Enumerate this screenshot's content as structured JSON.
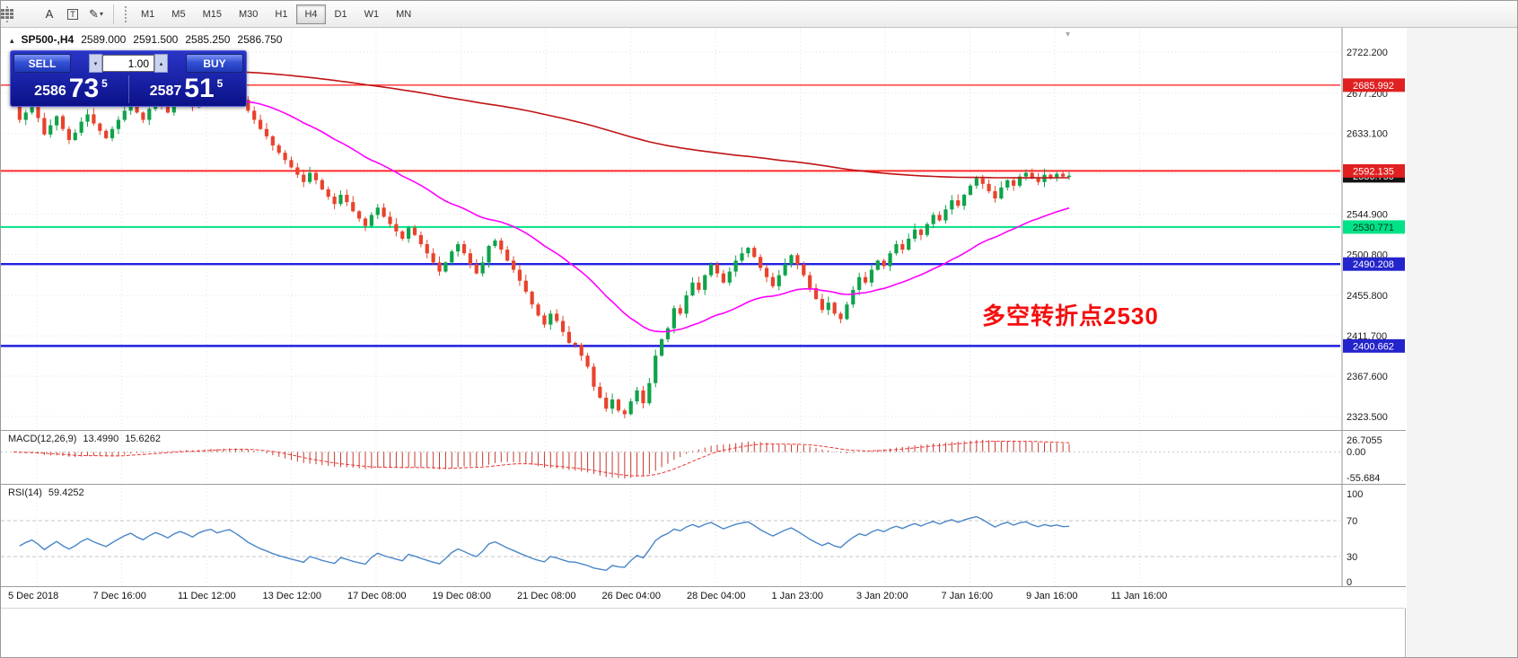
{
  "toolbar": {
    "tools": [
      {
        "name": "grid-icon",
        "glyph": ""
      },
      {
        "name": "text-tool-icon",
        "glyph": "A"
      },
      {
        "name": "label-tool-icon",
        "glyph": "T"
      },
      {
        "name": "draw-tool-icon",
        "glyph": "✎"
      }
    ],
    "draw_caret": "▾",
    "timeframes": [
      "M1",
      "M5",
      "M15",
      "M30",
      "H1",
      "H4",
      "D1",
      "W1",
      "MN"
    ],
    "active_timeframe": "H4"
  },
  "chart_header": {
    "expand_glyph": "▴",
    "symbol": "SP500-,H4",
    "open": "2589.000",
    "high": "2591.500",
    "low": "2585.250",
    "close": "2586.750"
  },
  "scroll_marker_glyph": "▾",
  "trade_panel": {
    "sell_label": "SELL",
    "buy_label": "BUY",
    "volume": "1.00",
    "volume_down_glyph": "▾",
    "volume_up_glyph": "▴",
    "sell_price_base": "2586",
    "sell_price_big": "73",
    "sell_price_sup": "5",
    "buy_price_base": "2587",
    "buy_price_big": "51",
    "buy_price_sup": "5"
  },
  "annotation": {
    "text": "多空转折点2530",
    "color": "#f50d0d"
  },
  "macd_panel": {
    "title": "MACD(12,26,9)",
    "value_main": "13.4990",
    "value_signal": "15.6262"
  },
  "rsi_panel": {
    "title": "RSI(14)",
    "value": "59.4252"
  },
  "chart_data": {
    "type": "candlestick",
    "symbol": "SP500-",
    "timeframe": "H4",
    "price_range": [
      2308.7,
      2748.7
    ],
    "price_ticks": [
      "2722.200",
      "2677.200",
      "2633.100",
      "2589.000",
      "2544.900",
      "2500.800",
      "2455.800",
      "2411.700",
      "2367.600",
      "2323.500"
    ],
    "candle_up_color": "#0fa34a",
    "candle_down_color": "#e8432d",
    "closes": [
      2668,
      2648,
      2656,
      2662,
      2650,
      2632,
      2642,
      2652,
      2638,
      2626,
      2634,
      2646,
      2654,
      2644,
      2636,
      2628,
      2638,
      2648,
      2658,
      2666,
      2656,
      2648,
      2660,
      2670,
      2664,
      2656,
      2668,
      2676,
      2670,
      2662,
      2674,
      2682,
      2686,
      2678,
      2684,
      2688,
      2680,
      2670,
      2658,
      2648,
      2638,
      2630,
      2620,
      2612,
      2604,
      2596,
      2588,
      2580,
      2590,
      2582,
      2572,
      2564,
      2556,
      2566,
      2558,
      2548,
      2540,
      2532,
      2544,
      2552,
      2542,
      2534,
      2526,
      2518,
      2530,
      2522,
      2512,
      2502,
      2492,
      2482,
      2492,
      2504,
      2512,
      2502,
      2490,
      2480,
      2492,
      2510,
      2516,
      2506,
      2494,
      2484,
      2472,
      2460,
      2446,
      2434,
      2424,
      2436,
      2428,
      2416,
      2404,
      2402,
      2390,
      2378,
      2356,
      2344,
      2332,
      2342,
      2330,
      2326,
      2340,
      2352,
      2338,
      2360,
      2390,
      2408,
      2420,
      2442,
      2436,
      2456,
      2470,
      2462,
      2478,
      2490,
      2480,
      2470,
      2482,
      2494,
      2502,
      2508,
      2498,
      2486,
      2476,
      2466,
      2478,
      2490,
      2500,
      2490,
      2478,
      2464,
      2452,
      2440,
      2448,
      2436,
      2430,
      2446,
      2462,
      2476,
      2470,
      2484,
      2494,
      2488,
      2502,
      2512,
      2506,
      2518,
      2528,
      2522,
      2534,
      2544,
      2538,
      2550,
      2560,
      2554,
      2566,
      2576,
      2584,
      2578,
      2570,
      2562,
      2574,
      2582,
      2576,
      2586,
      2590,
      2584,
      2580,
      2588,
      2585,
      2589,
      2586,
      2587
    ],
    "moving_averages": [
      {
        "name": "ma-slow-line",
        "color": "#c01414",
        "alpha": 0.0065,
        "seed": 2712,
        "start": 0
      },
      {
        "name": "ma-fast-line",
        "color": "#ff00ff",
        "alpha": 0.055,
        "seed": 2690,
        "start": 30
      }
    ],
    "hlines": [
      {
        "label": "2685.992",
        "color": "#ff2a2a",
        "tag_bg": "#e02020",
        "tag_fg": "#ffffff",
        "w": 1.4
      },
      {
        "label": "2592.135",
        "color": "#ff2a2a",
        "tag_bg": "#e02020",
        "tag_fg": "#ffffff",
        "w": 2
      },
      {
        "label": "2530.771",
        "color": "#00e287",
        "tag_bg": "#00e287",
        "tag_fg": "#06361f",
        "w": 2
      },
      {
        "label": "2490.208",
        "color": "#2020e0",
        "tag_bg": "#2424cc",
        "tag_fg": "#ffffff",
        "w": 2.4
      },
      {
        "label": "2400.662",
        "color": "#2020e0",
        "tag_bg": "#2424cc",
        "tag_fg": "#ffffff",
        "w": 2.4
      }
    ],
    "current_price": {
      "label": "2586.750",
      "tag_bg": "#141414",
      "tag_fg": "#ffffff"
    },
    "macd": {
      "tick_labels": [
        "26.7055",
        "0.00",
        "-55.684"
      ],
      "hist_color": "#c23b2e",
      "signal_color": "#ee3535"
    },
    "rsi": {
      "ticks": [
        "100",
        "70",
        "30",
        "0"
      ],
      "levels": [
        70,
        30
      ],
      "line_color": "#4a86c8"
    },
    "time_labels": [
      "5 Dec 2018",
      "7 Dec 16:00",
      "11 Dec 12:00",
      "13 Dec 12:00",
      "17 Dec 08:00",
      "19 Dec 08:00",
      "21 Dec 08:00",
      "26 Dec 04:00",
      "28 Dec 04:00",
      "1 Jan 23:00",
      "3 Jan 20:00",
      "7 Jan 16:00",
      "9 Jan 16:00",
      "11 Jan 16:00"
    ]
  }
}
